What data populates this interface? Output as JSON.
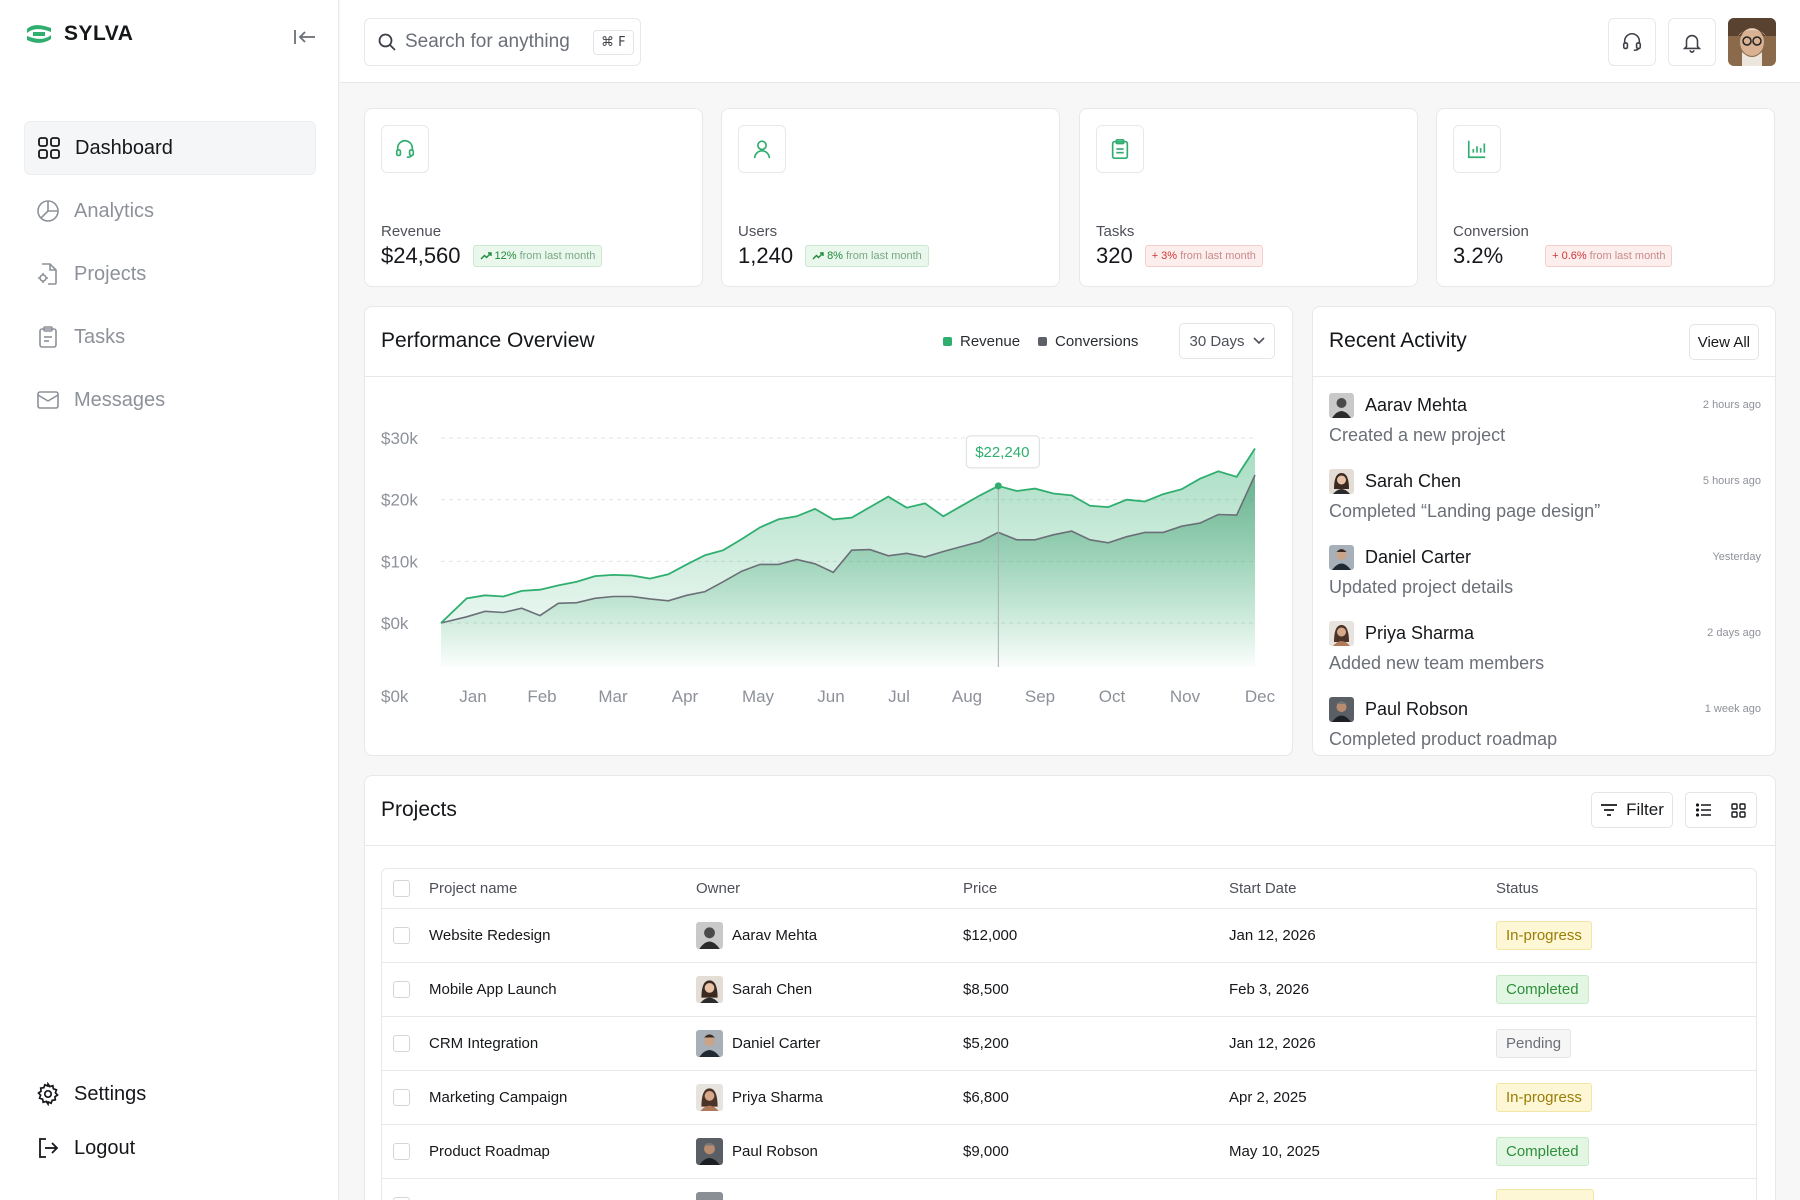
{
  "brand": {
    "name": "SYLVA"
  },
  "sidebar": {
    "items": [
      {
        "label": "Dashboard",
        "icon": "grid-icon",
        "active": true
      },
      {
        "label": "Analytics",
        "icon": "pie-chart-icon"
      },
      {
        "label": "Projects",
        "icon": "file-gear-icon"
      },
      {
        "label": "Tasks",
        "icon": "clipboard-icon"
      },
      {
        "label": "Messages",
        "icon": "mail-icon"
      }
    ],
    "bottom": [
      {
        "label": "Settings",
        "icon": "gear-icon"
      },
      {
        "label": "Logout",
        "icon": "logout-icon"
      }
    ]
  },
  "topbar": {
    "search_placeholder": "Search for anything",
    "shortcut": "⌘ F"
  },
  "stats": [
    {
      "label": "Revenue",
      "value": "$24,560",
      "change": "12%",
      "change_text": "from last month",
      "direction": "up"
    },
    {
      "label": "Users",
      "value": "1,240",
      "change": "8%",
      "change_text": "from last month",
      "direction": "up"
    },
    {
      "label": "Tasks",
      "value": "320",
      "change": "3%",
      "change_text": "from last month",
      "direction": "down"
    },
    {
      "label": "Conversion",
      "value": "3.2%",
      "change": "0.6%",
      "change_text": "from last month",
      "direction": "down"
    }
  ],
  "performance": {
    "title": "Performance Overview",
    "legend": [
      "Revenue",
      "Conversions"
    ],
    "range": "30 Days"
  },
  "chart_data": {
    "type": "area",
    "categories": [
      "Jan",
      "Feb",
      "Mar",
      "Apr",
      "May",
      "Jun",
      "Jul",
      "Aug",
      "Sep",
      "Oct",
      "Nov",
      "Dec"
    ],
    "y_ticks": [
      "$0k",
      "$0k",
      "$10k",
      "$20k",
      "$30k"
    ],
    "ylim": [
      0,
      30000
    ],
    "series": [
      {
        "name": "Revenue",
        "color": "#2fae6f",
        "x": [
          0,
          0.35,
          0.6,
          0.85,
          1.1,
          1.35,
          1.6,
          1.85,
          2.1,
          2.35,
          2.6,
          2.85,
          3.1,
          3.35,
          3.6,
          3.85,
          4.1,
          4.35,
          4.6,
          4.85,
          5.1,
          5.35,
          5.6,
          5.85,
          6.1,
          6.35,
          6.6,
          6.85,
          7.1,
          7.35,
          7.6,
          7.85,
          8.1,
          8.35,
          8.6,
          8.85,
          9.1,
          9.35,
          9.6,
          9.85,
          10.1,
          10.35,
          10.6,
          10.85,
          11.1
        ],
        "values": [
          0,
          4000,
          4500,
          4300,
          5200,
          5400,
          6100,
          6700,
          7600,
          7800,
          7700,
          7200,
          7900,
          9500,
          11000,
          11800,
          13600,
          15500,
          16800,
          17300,
          18500,
          16800,
          17100,
          18800,
          20500,
          18700,
          19400,
          17300,
          19000,
          20700,
          22240,
          21400,
          21800,
          21000,
          20700,
          19000,
          18800,
          20000,
          19700,
          20900,
          21700,
          23400,
          24600,
          23700,
          28300
        ]
      },
      {
        "name": "Conversions",
        "color": "#6b6f77",
        "x": [
          0,
          0.35,
          0.6,
          0.85,
          1.1,
          1.35,
          1.6,
          1.85,
          2.1,
          2.35,
          2.6,
          2.85,
          3.1,
          3.35,
          3.6,
          3.85,
          4.1,
          4.35,
          4.6,
          4.85,
          5.1,
          5.35,
          5.6,
          5.85,
          6.1,
          6.35,
          6.6,
          6.85,
          7.1,
          7.35,
          7.6,
          7.85,
          8.1,
          8.35,
          8.6,
          8.85,
          9.1,
          9.35,
          9.6,
          9.85,
          10.1,
          10.35,
          10.6,
          10.85,
          11.1
        ],
        "values": [
          0,
          1000,
          1900,
          1700,
          2400,
          1200,
          3200,
          3300,
          4000,
          4300,
          4300,
          3900,
          3600,
          4500,
          5100,
          6700,
          8400,
          9500,
          9500,
          10300,
          9600,
          8200,
          11800,
          11900,
          10900,
          11300,
          10700,
          11600,
          12400,
          13200,
          14700,
          13500,
          13500,
          14300,
          14900,
          13500,
          13000,
          14000,
          14700,
          14700,
          15700,
          16200,
          17600,
          17500,
          24000
        ]
      }
    ],
    "tooltip": {
      "category": "Aug",
      "value": "$22,240"
    }
  },
  "activity": {
    "title": "Recent Activity",
    "view_all": "View All",
    "items": [
      {
        "name": "Aarav Mehta",
        "time": "2 hours ago",
        "desc": "Created a new project"
      },
      {
        "name": "Sarah Chen",
        "time": "5 hours ago",
        "desc": "Completed “Landing page design”"
      },
      {
        "name": "Daniel Carter",
        "time": "Yesterday",
        "desc": "Updated project details"
      },
      {
        "name": "Priya Sharma",
        "time": "2 days ago",
        "desc": "Added new team members"
      },
      {
        "name": "Paul Robson",
        "time": "1 week ago",
        "desc": "Completed product roadmap"
      }
    ]
  },
  "projects": {
    "title": "Projects",
    "filter_label": "Filter",
    "columns": [
      "Project name",
      "Owner",
      "Price",
      "Start Date",
      "Status"
    ],
    "rows": [
      {
        "name": "Website Redesign",
        "owner": "Aarav Mehta",
        "price": "$12,000",
        "date": "Jan 12, 2026",
        "status": "In-progress",
        "status_kind": "inprogress"
      },
      {
        "name": "Mobile App Launch",
        "owner": "Sarah Chen",
        "price": "$8,500",
        "date": "Feb 3, 2026",
        "status": "Completed",
        "status_kind": "completed"
      },
      {
        "name": "CRM Integration",
        "owner": "Daniel Carter",
        "price": "$5,200",
        "date": "Jan 12, 2026",
        "status": "Pending",
        "status_kind": "pending"
      },
      {
        "name": "Marketing Campaign",
        "owner": "Priya Sharma",
        "price": "$6,800",
        "date": "Apr 2, 2025",
        "status": "In-progress",
        "status_kind": "inprogress"
      },
      {
        "name": "Product Roadmap",
        "owner": "Paul Robson",
        "price": "$9,000",
        "date": "May 10, 2025",
        "status": "Completed",
        "status_kind": "completed"
      }
    ]
  },
  "colors": {
    "accent": "#2fae6f",
    "conversions": "#5d6068"
  }
}
